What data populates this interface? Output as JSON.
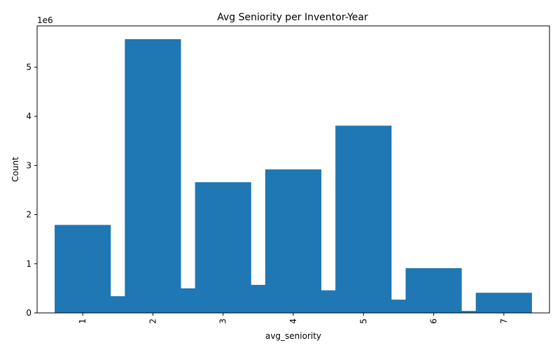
{
  "chart_data": {
    "type": "bar",
    "title": "Avg Seniority per Inventor-Year",
    "xlabel": "avg_seniority",
    "ylabel": "Count",
    "y_offset_label": "1e6",
    "x_ticks": [
      1,
      2,
      3,
      4,
      5,
      6,
      7
    ],
    "y_ticks": [
      0,
      1,
      2,
      3,
      4,
      5
    ],
    "xlim": [
      0.35,
      7.65
    ],
    "ylim": [
      0,
      5.84
    ],
    "grid": false,
    "legend": "none",
    "bar_color": "#1f77b4",
    "bars": [
      {
        "x": 1.0,
        "value": 1.79
      },
      {
        "x": 1.5,
        "value": 0.34
      },
      {
        "x": 2.0,
        "value": 5.57
      },
      {
        "x": 2.5,
        "value": 0.5
      },
      {
        "x": 3.0,
        "value": 2.66
      },
      {
        "x": 3.5,
        "value": 0.57
      },
      {
        "x": 4.0,
        "value": 2.92
      },
      {
        "x": 4.5,
        "value": 0.46
      },
      {
        "x": 5.0,
        "value": 3.81
      },
      {
        "x": 5.5,
        "value": 0.27
      },
      {
        "x": 6.0,
        "value": 0.91
      },
      {
        "x": 6.5,
        "value": 0.04
      },
      {
        "x": 7.0,
        "value": 0.41
      }
    ]
  }
}
